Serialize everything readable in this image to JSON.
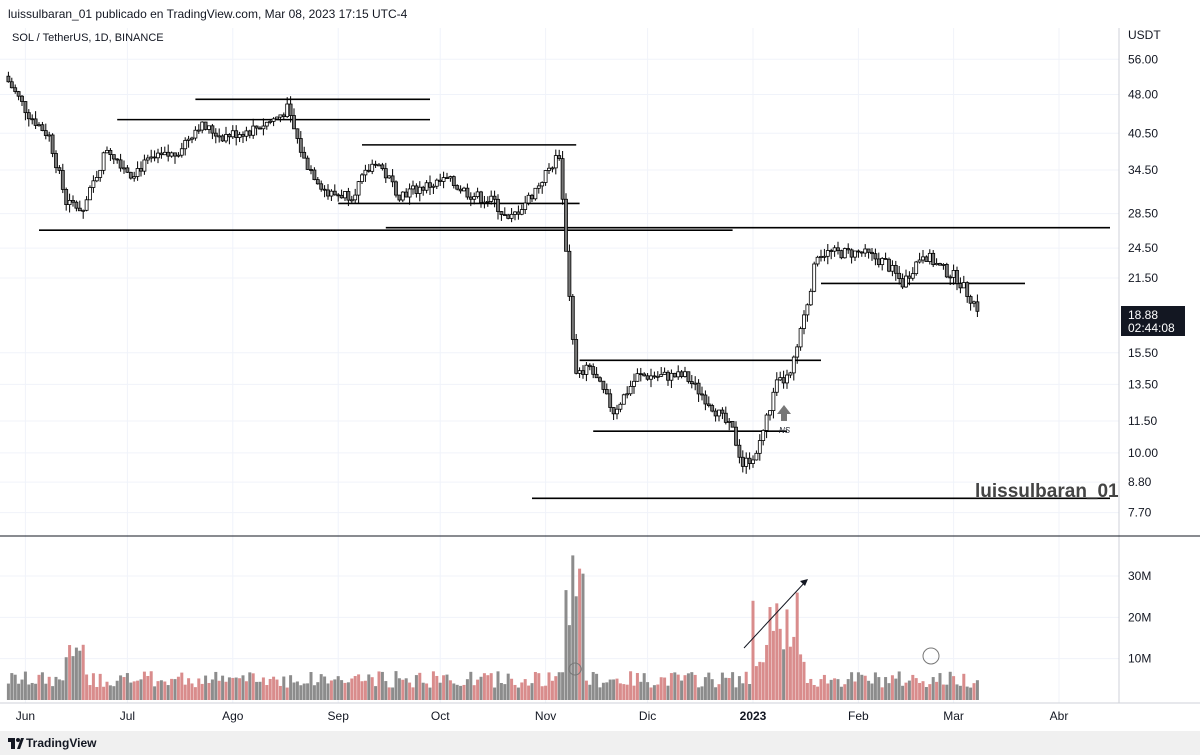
{
  "header": {
    "publish_text": "luissulbaran_01 publicado en TradingView.com, Mar 08, 2023 17:15 UTC-4"
  },
  "symbol_text": "SOL / TetherUS, 1D, BINANCE",
  "price_axis": {
    "currency": "USDT",
    "ticks": [
      "56.00",
      "48.00",
      "40.50",
      "34.50",
      "28.50",
      "24.50",
      "21.50",
      "15.50",
      "13.50",
      "11.50",
      "10.00",
      "8.80",
      "7.70"
    ]
  },
  "last_price": {
    "price": "18.88",
    "countdown": "02:44:08",
    "color": "#131722"
  },
  "volume_axis": {
    "ticks": [
      "30M",
      "20M",
      "10M"
    ]
  },
  "time_axis": {
    "labels": [
      "Jun",
      "Jul",
      "Ago",
      "Sep",
      "Oct",
      "Nov",
      "Dic",
      "2023",
      "Feb",
      "Mar",
      "Abr"
    ]
  },
  "watermark": "luissulbaran_01",
  "annotation_text": "NS",
  "footer": {
    "brand": "TradingView"
  },
  "colors": {
    "up": "#ffffff",
    "down": "#777777",
    "candle_border": "#000000",
    "volume_up": "#d98c8c",
    "volume_down": "#8c8c8c"
  },
  "chart_data": {
    "type": "candlestick",
    "symbol": "SOL / TetherUS",
    "interval": "1D",
    "exchange": "BINANCE",
    "ylabel": "USDT",
    "ylim": [
      7.2,
      62
    ],
    "log_scale": true,
    "x_range": [
      "2022-05-26",
      "2023-04-16"
    ],
    "date_labels": [
      "Jun",
      "Jul",
      "Ago",
      "Sep",
      "Oct",
      "Nov",
      "Dic",
      "2023",
      "Feb",
      "Mar",
      "Abr"
    ],
    "close_path": [
      [
        "2022-05-26",
        52
      ],
      [
        "2022-06-02",
        44
      ],
      [
        "2022-06-08",
        40
      ],
      [
        "2022-06-13",
        30
      ],
      [
        "2022-06-18",
        29
      ],
      [
        "2022-06-25",
        38
      ],
      [
        "2022-07-02",
        34
      ],
      [
        "2022-07-08",
        36
      ],
      [
        "2022-07-15",
        37
      ],
      [
        "2022-07-22",
        42
      ],
      [
        "2022-07-29",
        40
      ],
      [
        "2022-08-06",
        41
      ],
      [
        "2022-08-13",
        43
      ],
      [
        "2022-08-17",
        45
      ],
      [
        "2022-08-22",
        36
      ],
      [
        "2022-08-29",
        31
      ],
      [
        "2022-09-05",
        31
      ],
      [
        "2022-09-12",
        36
      ],
      [
        "2022-09-19",
        31
      ],
      [
        "2022-09-26",
        32
      ],
      [
        "2022-10-03",
        33
      ],
      [
        "2022-10-10",
        31
      ],
      [
        "2022-10-17",
        30
      ],
      [
        "2022-10-21",
        27.5
      ],
      [
        "2022-10-28",
        31
      ],
      [
        "2022-11-05",
        37
      ],
      [
        "2022-11-08",
        20
      ],
      [
        "2022-11-10",
        14
      ],
      [
        "2022-11-14",
        14.5
      ],
      [
        "2022-11-21",
        12
      ],
      [
        "2022-11-28",
        14
      ],
      [
        "2022-12-05",
        14
      ],
      [
        "2022-12-12",
        14
      ],
      [
        "2022-12-19",
        12.5
      ],
      [
        "2022-12-26",
        11
      ],
      [
        "2022-12-29",
        9.5
      ],
      [
        "2023-01-02",
        10
      ],
      [
        "2023-01-08",
        13.5
      ],
      [
        "2023-01-12",
        14
      ],
      [
        "2023-01-16",
        18
      ],
      [
        "2023-01-20",
        24
      ],
      [
        "2023-01-26",
        24
      ],
      [
        "2023-02-02",
        24
      ],
      [
        "2023-02-09",
        23
      ],
      [
        "2023-02-14",
        21
      ],
      [
        "2023-02-20",
        24
      ],
      [
        "2023-02-25",
        22.5
      ],
      [
        "2023-03-02",
        21.5
      ],
      [
        "2023-03-08",
        18.88
      ]
    ],
    "horizontal_levels": [
      {
        "price": 47,
        "from": "2022-07-21",
        "to": "2022-09-28"
      },
      {
        "price": 43,
        "from": "2022-06-28",
        "to": "2022-09-28"
      },
      {
        "price": 38.5,
        "from": "2022-09-08",
        "to": "2022-11-10"
      },
      {
        "price": 29.8,
        "from": "2022-09-01",
        "to": "2022-11-11"
      },
      {
        "price": 26.5,
        "from": "2022-06-05",
        "to": "2022-12-26"
      },
      {
        "price": 26.8,
        "from": "2022-09-15",
        "to": "2023-04-16"
      },
      {
        "price": 21.0,
        "from": "2023-01-21",
        "to": "2023-03-22"
      },
      {
        "price": 15.0,
        "from": "2022-11-11",
        "to": "2023-01-21"
      },
      {
        "price": 11.0,
        "from": "2022-11-15",
        "to": "2023-01-11"
      },
      {
        "price": 8.2,
        "from": "2022-10-28",
        "to": "2023-04-16"
      }
    ],
    "last_close": 18.88,
    "volume_ticks": [
      10000000,
      20000000,
      30000000
    ],
    "volume_ylim": [
      0,
      38000000
    ]
  }
}
